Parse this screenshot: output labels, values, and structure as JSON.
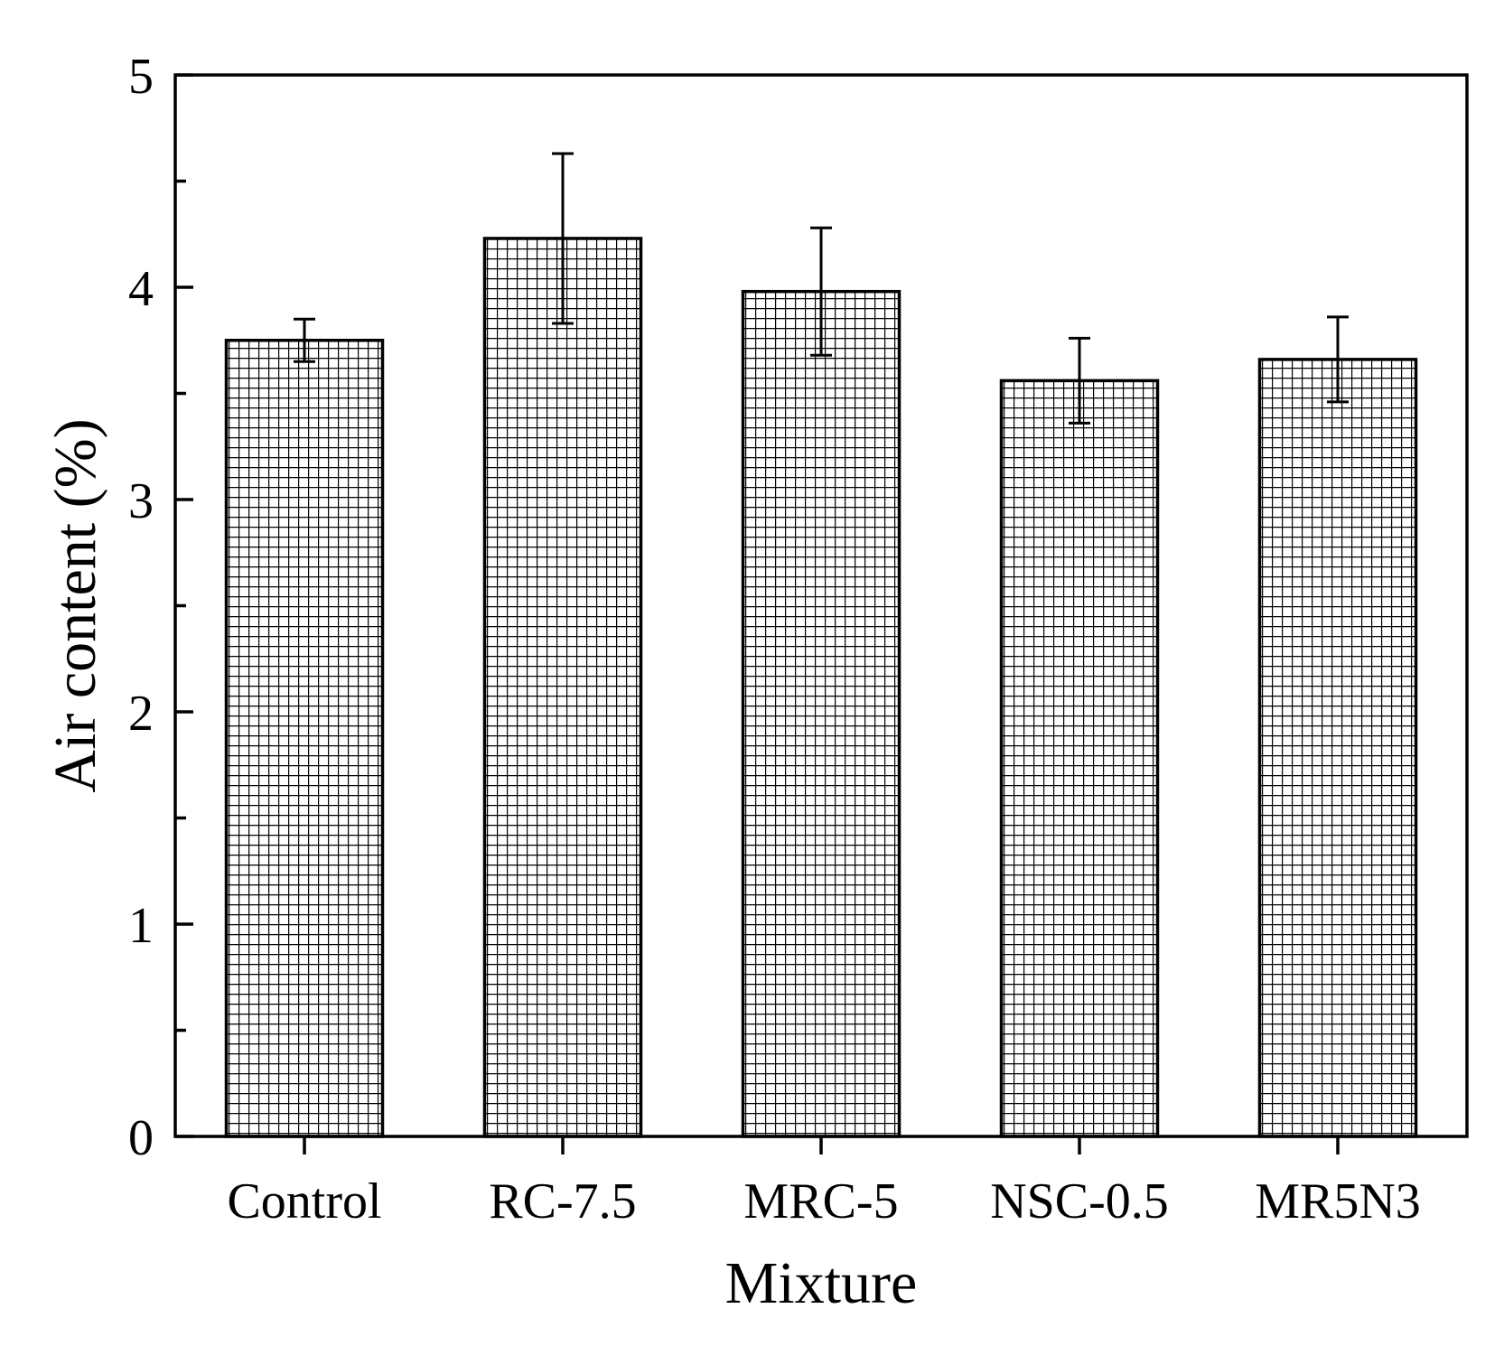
{
  "chart_data": {
    "type": "bar",
    "title": "",
    "xlabel": "Mixture",
    "ylabel": "Air content (%)",
    "ylim": [
      0,
      5
    ],
    "yticks": [
      0,
      1,
      2,
      3,
      4,
      5
    ],
    "categories": [
      "Control",
      "RC-7.5",
      "MRC-5",
      "NSC-0.5",
      "MR5N3"
    ],
    "values": [
      3.75,
      4.23,
      3.98,
      3.56,
      3.66
    ],
    "errors": [
      0.1,
      0.4,
      0.3,
      0.2,
      0.2
    ],
    "bar_pattern": "grid-hatch",
    "colors": {
      "bar_fill": "#ffffff",
      "hatch": "#000000",
      "axis": "#000000"
    },
    "legend": "none",
    "grid": false
  }
}
